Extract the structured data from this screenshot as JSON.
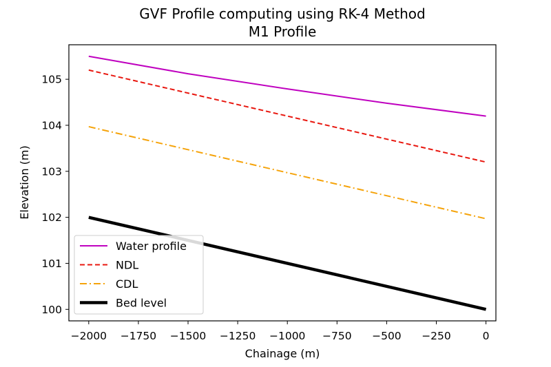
{
  "chart_data": {
    "type": "line",
    "title": "GVF Profile computing using RK-4 Method",
    "subtitle": "M1 Profile",
    "xlabel": "Chainage (m)",
    "ylabel": "Elevation (m)",
    "xlim": [
      -2100,
      50
    ],
    "ylim": [
      99.75,
      105.75
    ],
    "grid": false,
    "legend_position": "lower-left",
    "x_ticks": [
      -2000,
      -1750,
      -1500,
      -1250,
      -1000,
      -750,
      -500,
      -250,
      0
    ],
    "x_tick_labels": [
      "−2000",
      "−1750",
      "−1500",
      "−1250",
      "−1000",
      "−750",
      "−500",
      "−250",
      "0"
    ],
    "y_ticks": [
      100,
      101,
      102,
      103,
      104,
      105
    ],
    "y_tick_labels": [
      "100",
      "101",
      "102",
      "103",
      "104",
      "105"
    ],
    "series": [
      {
        "name": "Water profile",
        "color": "#bf00bf",
        "style": "solid",
        "x": [
          -2000,
          -1500,
          -1000,
          -500,
          0
        ],
        "y": [
          105.5,
          105.12,
          104.79,
          104.48,
          104.2
        ]
      },
      {
        "name": "NDL",
        "color": "#e8170f",
        "style": "dashed",
        "x": [
          -2000,
          0
        ],
        "y": [
          105.2,
          103.2
        ]
      },
      {
        "name": "CDL",
        "color": "#f5a30a",
        "style": "dashdot",
        "x": [
          -2000,
          0
        ],
        "y": [
          103.97,
          101.97
        ]
      },
      {
        "name": "Bed level",
        "color": "#000000",
        "style": "solid-thick",
        "x": [
          -2000,
          0
        ],
        "y": [
          102.0,
          100.0
        ]
      }
    ]
  }
}
